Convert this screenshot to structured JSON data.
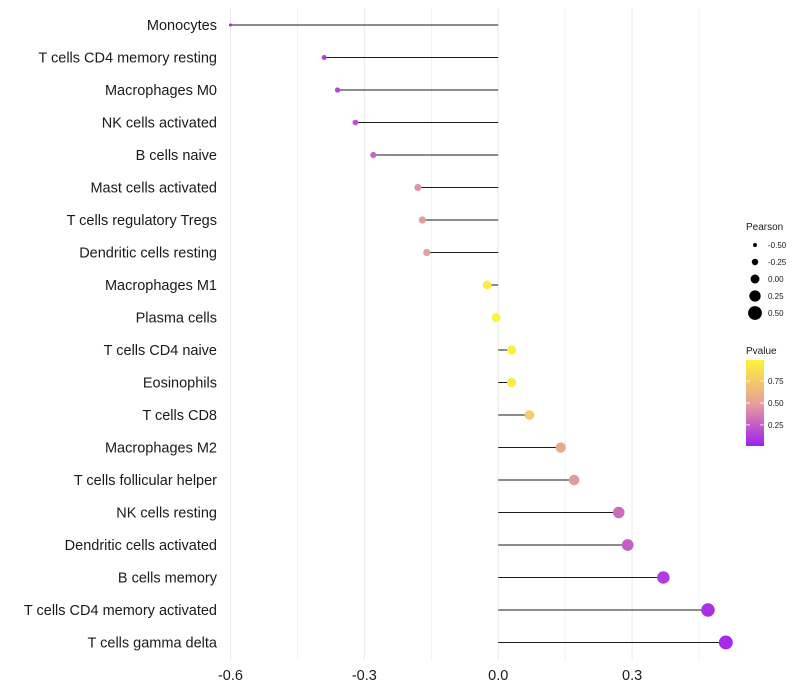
{
  "chart_data": {
    "type": "lollipop",
    "title": "",
    "xlabel": "",
    "ylabel": "",
    "xlim": [
      -0.61,
      0.535
    ],
    "xticks": [
      -0.6,
      -0.3,
      0.0,
      0.3
    ],
    "xtick_labels": [
      "-0.6",
      "-0.3",
      "0.0",
      "0.3"
    ],
    "grid": true,
    "categories": [
      "Monocytes",
      "T cells CD4 memory resting",
      "Macrophages M0",
      "NK cells activated",
      "B cells naive",
      "Mast cells activated",
      "T cells regulatory  Tregs",
      "Dendritic cells resting",
      "Macrophages M1",
      "Plasma cells",
      "T cells CD4 naive",
      "Eosinophils",
      "T cells CD8",
      "Macrophages M2",
      "T cells follicular helper",
      "NK cells resting",
      "Dendritic cells activated",
      "B cells memory",
      "T cells CD4 memory activated",
      "T cells gamma delta"
    ],
    "values": [
      -0.6,
      -0.39,
      -0.36,
      -0.32,
      -0.28,
      -0.18,
      -0.17,
      -0.16,
      -0.025,
      -0.005,
      0.03,
      0.03,
      0.07,
      0.14,
      0.17,
      0.27,
      0.29,
      0.37,
      0.47,
      0.51
    ],
    "pvalues": [
      0.01,
      0.12,
      0.15,
      0.2,
      0.27,
      0.45,
      0.48,
      0.5,
      0.95,
      0.99,
      0.95,
      0.95,
      0.78,
      0.55,
      0.48,
      0.3,
      0.25,
      0.12,
      0.07,
      0.05
    ],
    "size_legend": {
      "title": "Pearson",
      "values": [
        -0.5,
        -0.25,
        0.0,
        0.25,
        0.5
      ],
      "labels": [
        "-0.50",
        "-0.25",
        "0.00",
        "0.25",
        "0.50"
      ]
    },
    "color_legend": {
      "title": "Pvalue",
      "ticks": [
        0.25,
        0.5,
        0.75
      ],
      "tick_labels": [
        "0.25",
        "0.50",
        "0.75"
      ],
      "range": [
        0.01,
        0.99
      ],
      "colors": [
        "#a020f0",
        "#e8a09a",
        "#fff23a"
      ]
    },
    "legend_position": "right"
  }
}
